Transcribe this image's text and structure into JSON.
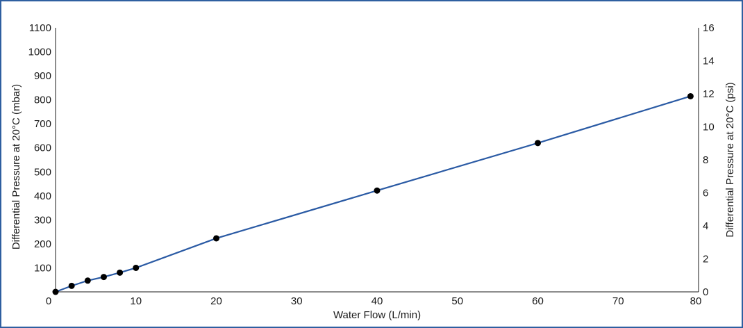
{
  "chart_data": {
    "type": "line",
    "title": "",
    "xlabel": "Water Flow (L/min)",
    "ylabel": "Differential Pressure at 20°C (mbar)",
    "y2label": "Differential Pressure at 20°C (psi)",
    "xlim": [
      0,
      80
    ],
    "ylim": [
      0,
      1100
    ],
    "y2lim": [
      0,
      16
    ],
    "x_ticks": [
      0,
      10,
      20,
      30,
      40,
      50,
      60,
      70,
      80
    ],
    "y_ticks": [
      100,
      200,
      300,
      400,
      500,
      600,
      700,
      800,
      900,
      1000,
      1100
    ],
    "y2_ticks": [
      0,
      2,
      4,
      6,
      8,
      10,
      12,
      14,
      16
    ],
    "grid": false,
    "series": [
      {
        "color": "#2a5aa4",
        "marker_color": "#000000",
        "x": [
          0,
          2,
          4,
          6,
          8,
          10,
          20,
          40,
          60,
          79
        ],
        "y": [
          0,
          25,
          47,
          62,
          80,
          100,
          223,
          422,
          620,
          815
        ]
      }
    ]
  }
}
